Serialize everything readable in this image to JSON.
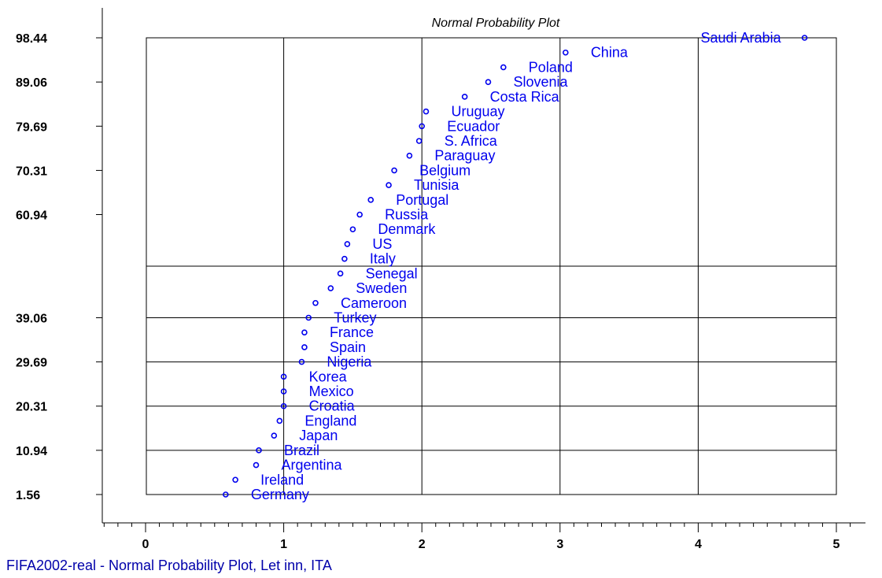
{
  "chart_data": {
    "type": "scatter",
    "title": "Normal Probability Plot",
    "xlim": [
      0,
      5
    ],
    "x_ticks": [
      "0",
      "1",
      "2",
      "3",
      "4",
      "5"
    ],
    "y_ticks": [
      "98.44",
      "89.06",
      "79.69",
      "70.31",
      "60.94",
      "39.06",
      "29.69",
      "20.31",
      "10.94",
      "1.56"
    ],
    "y_tick_values": [
      98.44,
      89.06,
      79.69,
      70.31,
      60.94,
      39.06,
      29.69,
      20.31,
      10.94,
      1.56
    ],
    "grid_x": [
      1,
      2,
      3,
      4
    ],
    "grid_y": [
      50,
      39.06,
      29.69,
      20.31,
      10.94
    ],
    "marker_color": "#0000ee",
    "points": [
      {
        "x": 0.58,
        "y": 1.56,
        "label": "Germany"
      },
      {
        "x": 0.65,
        "y": 4.69,
        "label": "Ireland"
      },
      {
        "x": 0.8,
        "y": 7.81,
        "label": "Argentina"
      },
      {
        "x": 0.82,
        "y": 10.94,
        "label": "Brazil"
      },
      {
        "x": 0.93,
        "y": 14.06,
        "label": "Japan"
      },
      {
        "x": 0.97,
        "y": 17.19,
        "label": "England"
      },
      {
        "x": 1.0,
        "y": 20.31,
        "label": "Croatia"
      },
      {
        "x": 1.0,
        "y": 23.44,
        "label": "Mexico"
      },
      {
        "x": 1.0,
        "y": 26.56,
        "label": "Korea"
      },
      {
        "x": 1.13,
        "y": 29.69,
        "label": "Nigeria"
      },
      {
        "x": 1.15,
        "y": 32.81,
        "label": "Spain"
      },
      {
        "x": 1.15,
        "y": 35.94,
        "label": "France"
      },
      {
        "x": 1.18,
        "y": 39.06,
        "label": "Turkey"
      },
      {
        "x": 1.23,
        "y": 42.19,
        "label": "Cameroon"
      },
      {
        "x": 1.34,
        "y": 45.31,
        "label": "Sweden"
      },
      {
        "x": 1.41,
        "y": 48.44,
        "label": "Senegal"
      },
      {
        "x": 1.44,
        "y": 51.56,
        "label": "Italy"
      },
      {
        "x": 1.46,
        "y": 54.69,
        "label": "US"
      },
      {
        "x": 1.5,
        "y": 57.81,
        "label": "Denmark"
      },
      {
        "x": 1.55,
        "y": 60.94,
        "label": "Russia"
      },
      {
        "x": 1.63,
        "y": 64.06,
        "label": "Portugal"
      },
      {
        "x": 1.76,
        "y": 67.19,
        "label": "Tunisia"
      },
      {
        "x": 1.8,
        "y": 70.31,
        "label": "Belgium"
      },
      {
        "x": 1.91,
        "y": 73.44,
        "label": "Paraguay"
      },
      {
        "x": 1.98,
        "y": 76.56,
        "label": "S. Africa"
      },
      {
        "x": 2.0,
        "y": 79.69,
        "label": "Ecuador"
      },
      {
        "x": 2.03,
        "y": 82.81,
        "label": "Uruguay"
      },
      {
        "x": 2.31,
        "y": 85.94,
        "label": "Costa Rica"
      },
      {
        "x": 2.48,
        "y": 89.06,
        "label": "Slovenia"
      },
      {
        "x": 2.59,
        "y": 92.19,
        "label": "Poland"
      },
      {
        "x": 3.04,
        "y": 95.31,
        "label": "China"
      },
      {
        "x": 4.77,
        "y": 98.44,
        "label": "Saudi Arabia"
      }
    ]
  },
  "footer": "FIFA2002-real - Normal Probability Plot, Let inn, ITA"
}
